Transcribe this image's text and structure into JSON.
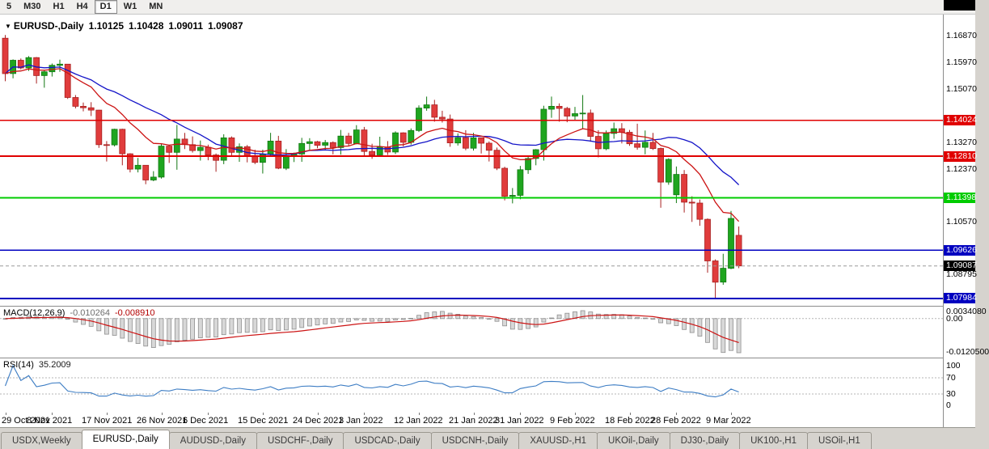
{
  "icons": {
    "symbol_dropdown": "▼"
  },
  "toolbar": {
    "timeframes": [
      {
        "label": "5",
        "active": false
      },
      {
        "label": "M30",
        "active": false
      },
      {
        "label": "H1",
        "active": false
      },
      {
        "label": "H4",
        "active": false
      },
      {
        "label": "D1",
        "active": true
      },
      {
        "label": "W1",
        "active": false
      },
      {
        "label": "MN",
        "active": false
      }
    ]
  },
  "chart_header": {
    "symbol": "EURUSD-,Daily",
    "open": "1.10125",
    "high": "1.10428",
    "low": "1.09011",
    "close": "1.09087"
  },
  "indicators": {
    "macd": {
      "title": "MACD(12,26,9)",
      "value_main": "-0.010264",
      "value_signal": "-0.008910",
      "axis": [
        "0.0034080",
        "0.00",
        "-0.0120500"
      ]
    },
    "rsi": {
      "title": "RSI(14)",
      "value": "35.2009",
      "axis": [
        "100",
        "70",
        "30",
        "0"
      ]
    }
  },
  "tabs": [
    {
      "label": "USDX,Weekly",
      "active": false
    },
    {
      "label": "EURUSD-,Daily",
      "active": true
    },
    {
      "label": "AUDUSD-,Daily",
      "active": false
    },
    {
      "label": "USDCHF-,Daily",
      "active": false
    },
    {
      "label": "USDCAD-,Daily",
      "active": false
    },
    {
      "label": "USDCNH-,Daily",
      "active": false
    },
    {
      "label": "XAUUSD-,H1",
      "active": false
    },
    {
      "label": "UKOil-,Daily",
      "active": false
    },
    {
      "label": "DJ30-,Daily",
      "active": false
    },
    {
      "label": "UK100-,H1",
      "active": false
    },
    {
      "label": "USOil-,H1",
      "active": false
    }
  ],
  "chart_data": {
    "type": "candlestick",
    "symbol": "EURUSD-,Daily",
    "x0": 6.5,
    "dx": 9.65,
    "price_scale": {
      "top": 1.1761,
      "bottom": 1.07737
    },
    "colors": {
      "bull": "#1fa51f",
      "bull_stroke": "#127812",
      "bear": "#e03c3c",
      "bear_stroke": "#a82020",
      "ma_blue": "#1414c8",
      "ma_red": "#cc1414",
      "macd_signal": "#cc1414",
      "macd_bar_fill": "#d8d8d8",
      "macd_bar_stroke": "#8f8f8f",
      "rsi": "#3d7dc4",
      "level_dotted": "#b5b5b5",
      "current_dash": "#9a9a9a"
    },
    "ma_lines": [
      {
        "color": "#1414c8",
        "type": "sma",
        "period": 20
      },
      {
        "color": "#cc1414",
        "type": "ema",
        "period": 12
      }
    ],
    "hlines": [
      {
        "price": 1.14024,
        "color": "#e00000",
        "width": 1.6
      },
      {
        "price": 1.1281,
        "color": "#e00000",
        "width": 1.6
      },
      {
        "price": 1.11398,
        "color": "#00cc00",
        "width": 2.2
      },
      {
        "price": 1.09626,
        "color": "#0000c0",
        "width": 1.6
      },
      {
        "price": 1.07984,
        "color": "#0000c0",
        "width": 2.0
      }
    ],
    "current_price_line": {
      "price": 1.09087,
      "color": "#9a9a9a"
    },
    "axis_labels": [
      {
        "text": "1.16870",
        "price": 1.1687,
        "type": "plain"
      },
      {
        "text": "1.15970",
        "price": 1.1597,
        "type": "plain"
      },
      {
        "text": "1.15070",
        "price": 1.1507,
        "type": "plain"
      },
      {
        "text": "1.14024",
        "price": 1.14024,
        "type": "red"
      },
      {
        "text": "1.13270",
        "price": 1.1327,
        "type": "plain"
      },
      {
        "text": "1.12810",
        "price": 1.1281,
        "type": "red"
      },
      {
        "text": "1.12370",
        "price": 1.1237,
        "type": "plain"
      },
      {
        "text": "1.11398",
        "price": 1.11398,
        "type": "green"
      },
      {
        "text": "1.10570",
        "price": 1.1057,
        "type": "plain"
      },
      {
        "text": "1.09626",
        "price": 1.09626,
        "type": "blue"
      },
      {
        "text": "1.09087",
        "price": 1.09087,
        "type": "black"
      },
      {
        "text": "1.08795",
        "price": 1.08795,
        "type": "plain"
      },
      {
        "text": "1.07984",
        "price": 1.07984,
        "type": "blue"
      }
    ],
    "x_labels": [
      {
        "label": "29 Oct 2021",
        "i": 0
      },
      {
        "label": "8 Nov 2021",
        "i": 6
      },
      {
        "label": "17 Nov 2021",
        "i": 13
      },
      {
        "label": "26 Nov 2021",
        "i": 20
      },
      {
        "label": "6 Dec 2021",
        "i": 26
      },
      {
        "label": "15 Dec 2021",
        "i": 33
      },
      {
        "label": "24 Dec 2021",
        "i": 40
      },
      {
        "label": "3 Jan 2022",
        "i": 46
      },
      {
        "label": "12 Jan 2022",
        "i": 53
      },
      {
        "label": "21 Jan 2022",
        "i": 60
      },
      {
        "label": "31 Jan 2022",
        "i": 66
      },
      {
        "label": "9 Feb 2022",
        "i": 73
      },
      {
        "label": "18 Feb 2022",
        "i": 80
      },
      {
        "label": "28 Feb 2022",
        "i": 86
      },
      {
        "label": "9 Mar 2022",
        "i": 93
      }
    ],
    "ohlc": [
      [
        1.1681,
        1.1692,
        1.1535,
        1.1561
      ],
      [
        1.1561,
        1.1609,
        1.1545,
        1.1606
      ],
      [
        1.1606,
        1.1612,
        1.1575,
        1.158
      ],
      [
        1.158,
        1.162,
        1.157,
        1.1615
      ],
      [
        1.1615,
        1.1617,
        1.1527,
        1.1554
      ],
      [
        1.1554,
        1.1573,
        1.1513,
        1.1567
      ],
      [
        1.1567,
        1.1595,
        1.1551,
        1.1589
      ],
      [
        1.1589,
        1.1608,
        1.1567,
        1.1593
      ],
      [
        1.1593,
        1.1593,
        1.1475,
        1.148
      ],
      [
        1.148,
        1.1488,
        1.1443,
        1.145
      ],
      [
        1.145,
        1.1463,
        1.1433,
        1.1445
      ],
      [
        1.1445,
        1.1464,
        1.1417,
        1.1437
      ],
      [
        1.1437,
        1.1438,
        1.1309,
        1.132
      ],
      [
        1.132,
        1.1332,
        1.1263,
        1.1319
      ],
      [
        1.1319,
        1.1374,
        1.1314,
        1.1372
      ],
      [
        1.1372,
        1.1374,
        1.125,
        1.1289
      ],
      [
        1.1289,
        1.1291,
        1.1226,
        1.1237
      ],
      [
        1.1237,
        1.1275,
        1.1226,
        1.125
      ],
      [
        1.125,
        1.1251,
        1.1186,
        1.12
      ],
      [
        1.12,
        1.123,
        1.1196,
        1.121
      ],
      [
        1.121,
        1.1323,
        1.1205,
        1.1315
      ],
      [
        1.1315,
        1.1318,
        1.1258,
        1.1294
      ],
      [
        1.1294,
        1.1387,
        1.1235,
        1.1339
      ],
      [
        1.1339,
        1.136,
        1.1305,
        1.132
      ],
      [
        1.132,
        1.1348,
        1.1293,
        1.13
      ],
      [
        1.13,
        1.1334,
        1.1266,
        1.1311
      ],
      [
        1.1311,
        1.132,
        1.1267,
        1.1285
      ],
      [
        1.1285,
        1.129,
        1.1228,
        1.1267
      ],
      [
        1.1267,
        1.1355,
        1.1254,
        1.1343
      ],
      [
        1.1343,
        1.1348,
        1.128,
        1.1294
      ],
      [
        1.1294,
        1.1324,
        1.1262,
        1.1313
      ],
      [
        1.1313,
        1.1319,
        1.126,
        1.1283
      ],
      [
        1.1283,
        1.1303,
        1.1254,
        1.126
      ],
      [
        1.126,
        1.1303,
        1.1222,
        1.1288
      ],
      [
        1.1288,
        1.136,
        1.1282,
        1.1332
      ],
      [
        1.1332,
        1.135,
        1.1237,
        1.124
      ],
      [
        1.124,
        1.1305,
        1.1234,
        1.128
      ],
      [
        1.128,
        1.1293,
        1.1261,
        1.1288
      ],
      [
        1.1288,
        1.1343,
        1.1262,
        1.1324
      ],
      [
        1.1324,
        1.1342,
        1.1301,
        1.133
      ],
      [
        1.133,
        1.1333,
        1.1308,
        1.1318
      ],
      [
        1.1318,
        1.1336,
        1.1302,
        1.1327
      ],
      [
        1.1327,
        1.1331,
        1.1287,
        1.131
      ],
      [
        1.131,
        1.137,
        1.1286,
        1.1349
      ],
      [
        1.1349,
        1.136,
        1.1315,
        1.1324
      ],
      [
        1.1324,
        1.1386,
        1.1321,
        1.137
      ],
      [
        1.137,
        1.138,
        1.1279,
        1.1297
      ],
      [
        1.1297,
        1.1323,
        1.1272,
        1.1285
      ],
      [
        1.1285,
        1.1347,
        1.128,
        1.1312
      ],
      [
        1.1312,
        1.1332,
        1.1285,
        1.1295
      ],
      [
        1.1295,
        1.1365,
        1.1288,
        1.136
      ],
      [
        1.136,
        1.1362,
        1.1314,
        1.1328
      ],
      [
        1.1328,
        1.1375,
        1.132,
        1.1368
      ],
      [
        1.1368,
        1.1453,
        1.1363,
        1.1444
      ],
      [
        1.1444,
        1.1483,
        1.1435,
        1.1455
      ],
      [
        1.1455,
        1.1472,
        1.1398,
        1.1413
      ],
      [
        1.1413,
        1.1435,
        1.1395,
        1.1407
      ],
      [
        1.1407,
        1.1422,
        1.1313,
        1.1326
      ],
      [
        1.1326,
        1.1358,
        1.1317,
        1.1344
      ],
      [
        1.1344,
        1.1369,
        1.1301,
        1.1308
      ],
      [
        1.1308,
        1.136,
        1.13,
        1.1343
      ],
      [
        1.1343,
        1.1344,
        1.129,
        1.1325
      ],
      [
        1.1325,
        1.1331,
        1.1263,
        1.1301
      ],
      [
        1.1301,
        1.131,
        1.1234,
        1.124
      ],
      [
        1.124,
        1.1245,
        1.1131,
        1.1145
      ],
      [
        1.1145,
        1.1173,
        1.1121,
        1.1148
      ],
      [
        1.1148,
        1.1248,
        1.1135,
        1.1235
      ],
      [
        1.1235,
        1.1279,
        1.1221,
        1.1273
      ],
      [
        1.1273,
        1.1305,
        1.125,
        1.1303
      ],
      [
        1.1303,
        1.1452,
        1.1266,
        1.144
      ],
      [
        1.144,
        1.1483,
        1.1411,
        1.145
      ],
      [
        1.145,
        1.146,
        1.1398,
        1.1443
      ],
      [
        1.1443,
        1.1448,
        1.1396,
        1.1417
      ],
      [
        1.1417,
        1.1448,
        1.1403,
        1.1425
      ],
      [
        1.1425,
        1.1488,
        1.1375,
        1.1427
      ],
      [
        1.1427,
        1.1439,
        1.133,
        1.1348
      ],
      [
        1.1348,
        1.1369,
        1.1277,
        1.1306
      ],
      [
        1.1306,
        1.1368,
        1.1301,
        1.1358
      ],
      [
        1.1358,
        1.1395,
        1.134,
        1.1374
      ],
      [
        1.1374,
        1.1393,
        1.1324,
        1.1362
      ],
      [
        1.1362,
        1.137,
        1.1316,
        1.1323
      ],
      [
        1.1323,
        1.1391,
        1.1303,
        1.1311
      ],
      [
        1.1311,
        1.1368,
        1.1287,
        1.1328
      ],
      [
        1.1328,
        1.136,
        1.1302,
        1.1307
      ],
      [
        1.1307,
        1.131,
        1.1106,
        1.1193
      ],
      [
        1.1193,
        1.1274,
        1.1184,
        1.127
      ],
      [
        1.115,
        1.1246,
        1.1122,
        1.1219
      ],
      [
        1.1219,
        1.1234,
        1.109,
        1.1125
      ],
      [
        1.1125,
        1.1145,
        1.1058,
        1.1122
      ],
      [
        1.1122,
        1.1134,
        1.1045,
        1.1067
      ],
      [
        1.1067,
        1.107,
        1.0886,
        1.0926
      ],
      [
        1.0926,
        1.0931,
        1.08,
        1.0854
      ],
      [
        1.0854,
        1.095,
        1.0845,
        1.0901
      ],
      [
        1.0901,
        1.1095,
        1.0898,
        1.107
      ],
      [
        1.10125,
        1.10428,
        1.09011,
        1.09087
      ]
    ]
  }
}
